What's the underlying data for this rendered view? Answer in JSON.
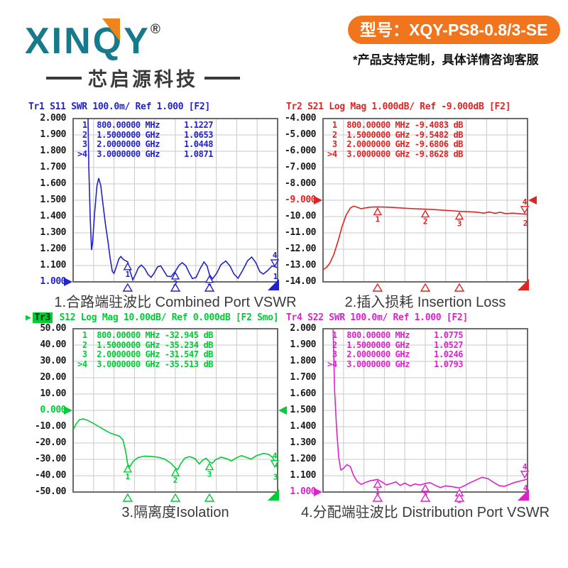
{
  "header": {
    "brand": "XINQY",
    "registered_mark": "®",
    "brand_subtitle": "芯启源科技",
    "model_badge": "型号：XQY-PS8-0.8/3-SE",
    "customization_note": "*产品支持定制，具体详情咨询客服",
    "colors": {
      "brand_teal": "#16798c",
      "accent_orange": "#f08419",
      "badge_orange": "#f0751d"
    }
  },
  "chart_data": [
    {
      "type": "line",
      "trace_label": "Tr1",
      "param": "S11",
      "format": "SWR",
      "title_parts": {
        "arrow": "",
        "badge": "",
        "rest": "Tr1 S11 SWR 100.0m/ Ref 1.000 [F2]"
      },
      "caption": "1.合路端驻波比 Combined Port VSWR",
      "color": "#2222cc",
      "x_range_ghz": [
        0,
        3
      ],
      "ylim": [
        1.0,
        2.0
      ],
      "yticks": [
        "2.000",
        "1.900",
        "1.800",
        "1.700",
        "1.600",
        "1.500",
        "1.400",
        "1.300",
        "1.200",
        "1.100",
        "1.000"
      ],
      "ref_tick_index": 10,
      "right_ref_arrow": false,
      "trace_number": "1",
      "active_marker_label": "4",
      "markers": [
        {
          "label": "1",
          "freq": "800.00000 MHz",
          "value": "1.1227",
          "x_ghz": 0.8,
          "y_val": 1.1227
        },
        {
          "label": "2",
          "freq": "1.5000000 GHz",
          "value": "1.0653",
          "x_ghz": 1.5,
          "y_val": 1.0653
        },
        {
          "label": "3",
          "freq": "2.0000000 GHz",
          "value": "1.0448",
          "x_ghz": 2.0,
          "y_val": 1.0448
        },
        {
          "label": ">4",
          "freq": "3.0000000 GHz",
          "value": "1.0871",
          "x_ghz": 3.0,
          "y_val": 1.0871
        }
      ],
      "trace_points": [
        [
          0.205,
          2.6
        ],
        [
          0.215,
          2.1
        ],
        [
          0.23,
          1.7
        ],
        [
          0.25,
          1.4
        ],
        [
          0.27,
          1.195
        ],
        [
          0.285,
          1.24
        ],
        [
          0.315,
          1.42
        ],
        [
          0.35,
          1.59
        ],
        [
          0.375,
          1.635
        ],
        [
          0.405,
          1.59
        ],
        [
          0.44,
          1.47
        ],
        [
          0.475,
          1.35
        ],
        [
          0.51,
          1.25
        ],
        [
          0.545,
          1.14
        ],
        [
          0.575,
          1.065
        ],
        [
          0.6,
          1.052
        ],
        [
          0.635,
          1.095
        ],
        [
          0.67,
          1.14
        ],
        [
          0.7,
          1.155
        ],
        [
          0.73,
          1.14
        ],
        [
          0.765,
          1.13
        ],
        [
          0.8,
          1.123
        ],
        [
          0.835,
          1.065
        ],
        [
          0.875,
          1.012
        ],
        [
          0.915,
          1.045
        ],
        [
          0.955,
          1.085
        ],
        [
          1.0,
          1.103
        ],
        [
          1.05,
          1.082
        ],
        [
          1.1,
          1.045
        ],
        [
          1.145,
          1.028
        ],
        [
          1.19,
          1.055
        ],
        [
          1.24,
          1.092
        ],
        [
          1.285,
          1.098
        ],
        [
          1.33,
          1.068
        ],
        [
          1.38,
          1.035
        ],
        [
          1.435,
          1.032
        ],
        [
          1.5,
          1.065
        ],
        [
          1.555,
          1.102
        ],
        [
          1.6,
          1.118
        ],
        [
          1.655,
          1.098
        ],
        [
          1.7,
          1.058
        ],
        [
          1.75,
          1.02
        ],
        [
          1.805,
          1.028
        ],
        [
          1.865,
          1.082
        ],
        [
          1.92,
          1.122
        ],
        [
          1.965,
          1.098
        ],
        [
          2.0,
          1.045
        ],
        [
          2.045,
          1.018
        ],
        [
          2.105,
          1.052
        ],
        [
          2.17,
          1.106
        ],
        [
          2.24,
          1.128
        ],
        [
          2.3,
          1.098
        ],
        [
          2.36,
          1.048
        ],
        [
          2.42,
          1.022
        ],
        [
          2.49,
          1.072
        ],
        [
          2.56,
          1.13
        ],
        [
          2.62,
          1.152
        ],
        [
          2.68,
          1.118
        ],
        [
          2.74,
          1.062
        ],
        [
          2.79,
          1.048
        ],
        [
          2.85,
          1.068
        ],
        [
          2.92,
          1.098
        ],
        [
          3.0,
          1.087
        ]
      ]
    },
    {
      "type": "line",
      "trace_label": "Tr2",
      "param": "S21",
      "format": "Log Mag",
      "title_parts": {
        "arrow": "",
        "badge": "",
        "rest": "Tr2 S21 Log Mag 1.000dB/ Ref -9.000dB [F2]"
      },
      "caption": "2.插入损耗 Insertion Loss",
      "color": "#e32222",
      "x_range_ghz": [
        0,
        3
      ],
      "ylim": [
        -14.0,
        -4.0
      ],
      "yticks": [
        "-4.000",
        "-5.000",
        "-6.000",
        "-7.000",
        "-8.000",
        "-9.000",
        "-10.00",
        "-11.00",
        "-12.00",
        "-13.00",
        "-14.00"
      ],
      "ref_tick_index": 5,
      "right_ref_arrow": true,
      "trace_number": "2",
      "active_marker_label": "4",
      "markers": [
        {
          "label": "1",
          "freq": "800.00000 MHz",
          "value": "-9.4083 dB",
          "x_ghz": 0.8,
          "y_val": -9.4083
        },
        {
          "label": "2",
          "freq": "1.5000000 GHz",
          "value": "-9.5482 dB",
          "x_ghz": 1.5,
          "y_val": -9.5482
        },
        {
          "label": "3",
          "freq": "2.0000000 GHz",
          "value": "-9.6806 dB",
          "x_ghz": 2.0,
          "y_val": -9.6806
        },
        {
          "label": ">4",
          "freq": "3.0000000 GHz",
          "value": "-9.8628 dB",
          "x_ghz": 3.0,
          "y_val": -9.8628
        }
      ],
      "trace_points": [
        [
          0,
          -13.25
        ],
        [
          0.05,
          -13.12
        ],
        [
          0.1,
          -12.85
        ],
        [
          0.16,
          -12.3
        ],
        [
          0.22,
          -11.5
        ],
        [
          0.28,
          -10.6
        ],
        [
          0.34,
          -9.9
        ],
        [
          0.4,
          -9.48
        ],
        [
          0.45,
          -9.36
        ],
        [
          0.5,
          -9.42
        ],
        [
          0.56,
          -9.52
        ],
        [
          0.62,
          -9.47
        ],
        [
          0.7,
          -9.42
        ],
        [
          0.8,
          -9.408
        ],
        [
          0.92,
          -9.42
        ],
        [
          1.05,
          -9.45
        ],
        [
          1.2,
          -9.49
        ],
        [
          1.35,
          -9.52
        ],
        [
          1.5,
          -9.548
        ],
        [
          1.65,
          -9.58
        ],
        [
          1.8,
          -9.62
        ],
        [
          1.92,
          -9.65
        ],
        [
          2.0,
          -9.681
        ],
        [
          2.12,
          -9.7
        ],
        [
          2.25,
          -9.73
        ],
        [
          2.36,
          -9.79
        ],
        [
          2.44,
          -9.72
        ],
        [
          2.52,
          -9.8
        ],
        [
          2.6,
          -9.74
        ],
        [
          2.68,
          -9.82
        ],
        [
          2.78,
          -9.79
        ],
        [
          2.88,
          -9.83
        ],
        [
          3.0,
          -9.863
        ]
      ]
    },
    {
      "type": "line",
      "trace_label": "Tr3",
      "param": "S12",
      "format": "Log Mag",
      "title_parts": {
        "arrow": "▶",
        "badge": "Tr3",
        "rest": " S12 Log Mag 10.00dB/ Ref 0.000dB [F2 Smo]"
      },
      "caption": "3.隔离度Isolation",
      "color": "#00cc33",
      "x_range_ghz": [
        0,
        3
      ],
      "ylim": [
        -50.0,
        50.0
      ],
      "yticks": [
        "50.00",
        "40.00",
        "30.00",
        "20.00",
        "10.00",
        "0.000",
        "-10.00",
        "-20.00",
        "-30.00",
        "-40.00",
        "-50.00"
      ],
      "ref_tick_index": 5,
      "right_ref_arrow": true,
      "trace_number": "3",
      "active_marker_label": "4",
      "markers": [
        {
          "label": "1",
          "freq": "800.00000 MHz",
          "value": "-32.945 dB",
          "x_ghz": 0.8,
          "y_val": -32.945
        },
        {
          "label": "2",
          "freq": "1.5000000 GHz",
          "value": "-35.234 dB",
          "x_ghz": 1.5,
          "y_val": -35.234
        },
        {
          "label": "3",
          "freq": "2.0000000 GHz",
          "value": "-31.547 dB",
          "x_ghz": 2.0,
          "y_val": -31.547
        },
        {
          "label": ">4",
          "freq": "3.0000000 GHz",
          "value": "-35.513 dB",
          "x_ghz": 3.0,
          "y_val": -35.513
        }
      ],
      "trace_points": [
        [
          0,
          -12.0
        ],
        [
          0.04,
          -8.5
        ],
        [
          0.09,
          -5.8
        ],
        [
          0.15,
          -5.2
        ],
        [
          0.22,
          -6.2
        ],
        [
          0.3,
          -8.0
        ],
        [
          0.38,
          -10.0
        ],
        [
          0.46,
          -12.0
        ],
        [
          0.54,
          -13.8
        ],
        [
          0.62,
          -15.0
        ],
        [
          0.68,
          -15.8
        ],
        [
          0.73,
          -18.0
        ],
        [
          0.77,
          -25.0
        ],
        [
          0.8,
          -32.9
        ],
        [
          0.83,
          -34.6
        ],
        [
          0.88,
          -31.2
        ],
        [
          0.95,
          -28.9
        ],
        [
          1.05,
          -28.0
        ],
        [
          1.15,
          -28.2
        ],
        [
          1.25,
          -28.7
        ],
        [
          1.34,
          -29.8
        ],
        [
          1.43,
          -32.2
        ],
        [
          1.5,
          -35.2
        ],
        [
          1.53,
          -36.4
        ],
        [
          1.58,
          -32.5
        ],
        [
          1.64,
          -29.2
        ],
        [
          1.71,
          -28.3
        ],
        [
          1.79,
          -29.6
        ],
        [
          1.85,
          -32.8
        ],
        [
          1.9,
          -30.5
        ],
        [
          1.95,
          -29.3
        ],
        [
          2.0,
          -31.5
        ],
        [
          2.04,
          -32.4
        ],
        [
          2.09,
          -30.2
        ],
        [
          2.17,
          -28.6
        ],
        [
          2.26,
          -29.7
        ],
        [
          2.32,
          -31.0
        ],
        [
          2.39,
          -29.2
        ],
        [
          2.47,
          -27.7
        ],
        [
          2.54,
          -28.7
        ],
        [
          2.61,
          -29.9
        ],
        [
          2.69,
          -27.7
        ],
        [
          2.79,
          -26.4
        ],
        [
          2.87,
          -26.9
        ],
        [
          2.93,
          -29.0
        ],
        [
          3.0,
          -35.5
        ]
      ]
    },
    {
      "type": "line",
      "trace_label": "Tr4",
      "param": "S22",
      "format": "SWR",
      "title_parts": {
        "arrow": "",
        "badge": "",
        "rest": "Tr4 S22 SWR 100.0m/ Ref 1.000 [F2]"
      },
      "caption": "4.分配端驻波比 Distribution  Port VSWR",
      "color": "#dd22cc",
      "x_range_ghz": [
        0,
        3
      ],
      "ylim": [
        1.0,
        2.0
      ],
      "yticks": [
        "2.000",
        "1.900",
        "1.800",
        "1.700",
        "1.600",
        "1.500",
        "1.400",
        "1.300",
        "1.200",
        "1.100",
        "1.000"
      ],
      "ref_tick_index": 10,
      "right_ref_arrow": false,
      "trace_number": "4",
      "active_marker_label": "4",
      "markers": [
        {
          "label": "1",
          "freq": "800.00000 MHz",
          "value": "1.0775",
          "x_ghz": 0.8,
          "y_val": 1.0775
        },
        {
          "label": "2",
          "freq": "1.5000000 GHz",
          "value": "1.0527",
          "x_ghz": 1.5,
          "y_val": 1.0527
        },
        {
          "label": "3",
          "freq": "2.0000000 GHz",
          "value": "1.0246",
          "x_ghz": 2.0,
          "y_val": 1.0246
        },
        {
          "label": ">4",
          "freq": "3.0000000 GHz",
          "value": "1.0793",
          "x_ghz": 3.0,
          "y_val": 1.0793
        }
      ],
      "trace_points": [
        [
          0.138,
          2.4
        ],
        [
          0.15,
          1.95
        ],
        [
          0.17,
          1.62
        ],
        [
          0.2,
          1.38
        ],
        [
          0.23,
          1.21
        ],
        [
          0.26,
          1.135
        ],
        [
          0.3,
          1.145
        ],
        [
          0.35,
          1.168
        ],
        [
          0.4,
          1.155
        ],
        [
          0.45,
          1.1
        ],
        [
          0.5,
          1.065
        ],
        [
          0.56,
          1.047
        ],
        [
          0.63,
          1.06
        ],
        [
          0.7,
          1.07
        ],
        [
          0.75,
          1.073
        ],
        [
          0.8,
          1.0775
        ],
        [
          0.86,
          1.062
        ],
        [
          0.93,
          1.044
        ],
        [
          1.0,
          1.052
        ],
        [
          1.07,
          1.062
        ],
        [
          1.13,
          1.04
        ],
        [
          1.2,
          1.055
        ],
        [
          1.28,
          1.037
        ],
        [
          1.35,
          1.05
        ],
        [
          1.42,
          1.042
        ],
        [
          1.5,
          1.0527
        ],
        [
          1.57,
          1.058
        ],
        [
          1.64,
          1.042
        ],
        [
          1.72,
          1.028
        ],
        [
          1.8,
          1.038
        ],
        [
          1.9,
          1.032
        ],
        [
          2.0,
          1.0246
        ],
        [
          2.08,
          1.04
        ],
        [
          2.16,
          1.058
        ],
        [
          2.25,
          1.075
        ],
        [
          2.33,
          1.09
        ],
        [
          2.42,
          1.082
        ],
        [
          2.5,
          1.06
        ],
        [
          2.58,
          1.04
        ],
        [
          2.66,
          1.035
        ],
        [
          2.74,
          1.048
        ],
        [
          2.82,
          1.06
        ],
        [
          2.9,
          1.068
        ],
        [
          3.0,
          1.0793
        ]
      ]
    }
  ]
}
